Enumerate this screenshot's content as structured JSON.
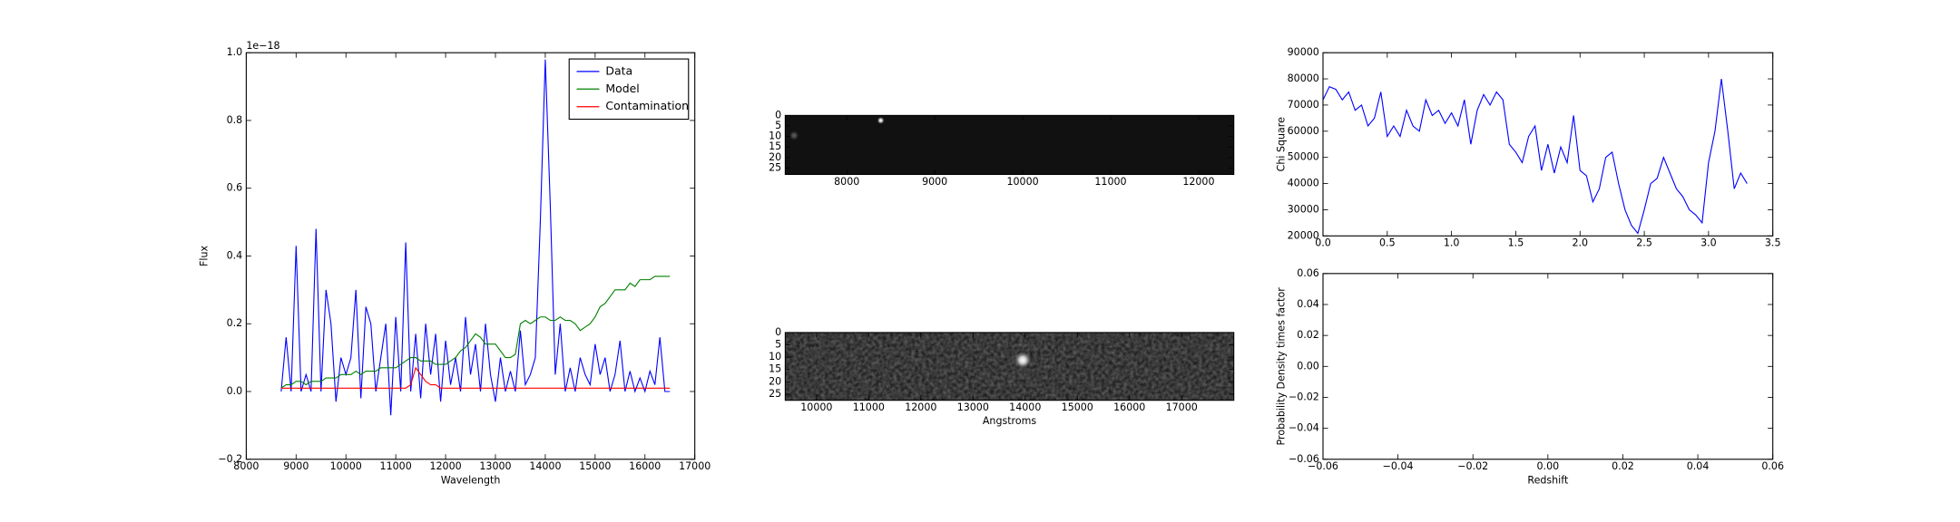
{
  "chart_data": [
    {
      "type": "line",
      "xlabel": "Wavelength",
      "ylabel": "Flux",
      "offset_text": "1e−18",
      "legend": "upper right",
      "xlim": [
        8000,
        17000
      ],
      "xticks": [
        8000,
        9000,
        10000,
        11000,
        12000,
        13000,
        14000,
        15000,
        16000,
        17000
      ],
      "ylim": [
        -0.2,
        1.0
      ],
      "yticks": [
        {
          "value": -0.2,
          "label": "−0.2"
        },
        {
          "value": 0.0,
          "label": "0.0"
        },
        0.2,
        0.4,
        0.6,
        0.8,
        {
          "value": 1.0,
          "label": "1.0"
        }
      ],
      "x": [
        8700,
        8800,
        8900,
        9000,
        9100,
        9200,
        9300,
        9400,
        9500,
        9600,
        9700,
        9800,
        9900,
        10000,
        10100,
        10200,
        10300,
        10400,
        10500,
        10600,
        10700,
        10800,
        10900,
        11000,
        11100,
        11200,
        11300,
        11400,
        11500,
        11600,
        11700,
        11800,
        11900,
        12000,
        12100,
        12200,
        12300,
        12400,
        12500,
        12600,
        12700,
        12800,
        12900,
        13000,
        13100,
        13200,
        13300,
        13400,
        13500,
        13600,
        13700,
        13800,
        13900,
        14000,
        14100,
        14200,
        14300,
        14400,
        14500,
        14600,
        14700,
        14800,
        14900,
        15000,
        15100,
        15200,
        15300,
        15400,
        15500,
        15600,
        15700,
        15800,
        15900,
        16000,
        16100,
        16200,
        16300,
        16400,
        16500
      ],
      "series": [
        {
          "name": "Data",
          "color": "#0000ff",
          "values": [
            0.0,
            0.16,
            0.0,
            0.43,
            0.0,
            0.05,
            0.0,
            0.48,
            0.0,
            0.3,
            0.2,
            -0.03,
            0.1,
            0.05,
            0.1,
            0.3,
            -0.02,
            0.25,
            0.2,
            0.0,
            0.1,
            0.2,
            -0.07,
            0.22,
            0.0,
            0.44,
            0.0,
            0.17,
            -0.02,
            0.2,
            0.05,
            0.17,
            -0.03,
            0.15,
            0.02,
            0.1,
            0.0,
            0.22,
            0.05,
            0.14,
            0.0,
            0.2,
            0.05,
            -0.03,
            0.1,
            0.0,
            0.06,
            0.0,
            0.18,
            0.02,
            0.05,
            0.1,
            0.5,
            0.98,
            0.55,
            0.05,
            0.2,
            0.0,
            0.07,
            0.0,
            0.1,
            0.05,
            0.02,
            0.14,
            0.05,
            0.1,
            0.0,
            0.05,
            0.15,
            0.0,
            0.06,
            0.0,
            0.04,
            0.0,
            0.06,
            0.02,
            0.16,
            0.0,
            0.0
          ]
        },
        {
          "name": "Model",
          "color": "#008000",
          "values": [
            0.01,
            0.02,
            0.02,
            0.03,
            0.03,
            0.02,
            0.03,
            0.03,
            0.03,
            0.04,
            0.04,
            0.04,
            0.05,
            0.05,
            0.05,
            0.06,
            0.05,
            0.06,
            0.06,
            0.06,
            0.07,
            0.07,
            0.07,
            0.07,
            0.08,
            0.09,
            0.1,
            0.1,
            0.09,
            0.09,
            0.09,
            0.08,
            0.08,
            0.08,
            0.09,
            0.1,
            0.12,
            0.13,
            0.15,
            0.17,
            0.16,
            0.14,
            0.14,
            0.14,
            0.12,
            0.1,
            0.1,
            0.11,
            0.2,
            0.21,
            0.2,
            0.21,
            0.22,
            0.22,
            0.21,
            0.21,
            0.22,
            0.21,
            0.21,
            0.2,
            0.18,
            0.19,
            0.2,
            0.22,
            0.25,
            0.26,
            0.28,
            0.3,
            0.3,
            0.3,
            0.32,
            0.31,
            0.33,
            0.33,
            0.33,
            0.34,
            0.34,
            0.34,
            0.34
          ]
        },
        {
          "name": "Contamination",
          "color": "#ff0000",
          "values": [
            0.01,
            0.01,
            0.01,
            0.01,
            0.01,
            0.01,
            0.01,
            0.01,
            0.01,
            0.01,
            0.01,
            0.01,
            0.01,
            0.01,
            0.01,
            0.01,
            0.01,
            0.01,
            0.01,
            0.01,
            0.01,
            0.01,
            0.01,
            0.01,
            0.01,
            0.01,
            0.02,
            0.07,
            0.05,
            0.03,
            0.02,
            0.02,
            0.01,
            0.01,
            0.01,
            0.01,
            0.01,
            0.01,
            0.01,
            0.01,
            0.01,
            0.01,
            0.01,
            0.01,
            0.01,
            0.01,
            0.01,
            0.01,
            0.01,
            0.01,
            0.01,
            0.01,
            0.01,
            0.01,
            0.01,
            0.01,
            0.01,
            0.01,
            0.01,
            0.01,
            0.01,
            0.01,
            0.01,
            0.01,
            0.01,
            0.01,
            0.01,
            0.01,
            0.01,
            0.01,
            0.01,
            0.01,
            0.01,
            0.01,
            0.01,
            0.01,
            0.01,
            0.01,
            0.01
          ]
        }
      ]
    },
    {
      "type": "image",
      "xlim": [
        7300,
        12400
      ],
      "xticks": [
        8000,
        9000,
        10000,
        11000,
        12000
      ],
      "ylim": [
        28,
        0
      ],
      "yticks": [
        0,
        5,
        10,
        15,
        20,
        25
      ]
    },
    {
      "type": "image",
      "xlabel": "Angstroms",
      "xlim": [
        9400,
        18000
      ],
      "xticks": [
        10000,
        11000,
        12000,
        13000,
        14000,
        15000,
        16000,
        17000
      ],
      "ylim": [
        27.5,
        0
      ],
      "yticks": [
        0,
        5,
        10,
        15,
        20,
        25
      ]
    },
    {
      "type": "line",
      "ylabel": "Chi Square",
      "xlim": [
        0,
        3.5
      ],
      "xticks": [
        {
          "value": 0.0,
          "label": "0.0"
        },
        0.5,
        {
          "value": 1.0,
          "label": "1.0"
        },
        1.5,
        {
          "value": 2.0,
          "label": "2.0"
        },
        2.5,
        {
          "value": 3.0,
          "label": "3.0"
        },
        3.5
      ],
      "ylim": [
        20000,
        90000
      ],
      "yticks": [
        20000,
        30000,
        40000,
        50000,
        60000,
        70000,
        80000,
        90000
      ],
      "x": [
        0,
        0.05,
        0.1,
        0.15,
        0.2,
        0.25,
        0.3,
        0.35,
        0.4,
        0.45,
        0.5,
        0.55,
        0.6,
        0.65,
        0.7,
        0.75,
        0.8,
        0.85,
        0.9,
        0.95,
        1.0,
        1.05,
        1.1,
        1.15,
        1.2,
        1.25,
        1.3,
        1.35,
        1.4,
        1.45,
        1.5,
        1.55,
        1.6,
        1.65,
        1.7,
        1.75,
        1.8,
        1.85,
        1.9,
        1.95,
        2.0,
        2.05,
        2.1,
        2.15,
        2.2,
        2.25,
        2.3,
        2.35,
        2.4,
        2.45,
        2.5,
        2.55,
        2.6,
        2.65,
        2.7,
        2.75,
        2.8,
        2.85,
        2.9,
        2.95,
        3.0,
        3.05,
        3.1,
        3.15,
        3.2,
        3.25,
        3.3
      ],
      "series": [
        {
          "color": "#0000ff",
          "values": [
            72000,
            77000,
            76000,
            72000,
            75000,
            68000,
            70000,
            62000,
            65000,
            75000,
            58000,
            62000,
            58000,
            68000,
            62000,
            60000,
            72000,
            66000,
            68000,
            63000,
            67000,
            62000,
            72000,
            55000,
            68000,
            74000,
            70000,
            75000,
            72000,
            55000,
            52000,
            48000,
            58000,
            62000,
            45000,
            55000,
            44000,
            54000,
            48000,
            66000,
            45000,
            43000,
            33000,
            38000,
            50000,
            52000,
            40000,
            30000,
            24000,
            21000,
            30000,
            40000,
            42000,
            50000,
            44000,
            38000,
            35000,
            30000,
            28000,
            25000,
            48000,
            60000,
            80000,
            60000,
            38000,
            44000,
            40000
          ]
        }
      ]
    },
    {
      "type": "line",
      "xlabel": "Redshift",
      "ylabel": "Probability Density times factor",
      "xlim": [
        -0.06,
        0.06
      ],
      "xticks": [
        {
          "value": -0.06,
          "label": "−0.06"
        },
        {
          "value": -0.04,
          "label": "−0.04"
        },
        {
          "value": -0.02,
          "label": "−0.02"
        },
        {
          "value": 0.0,
          "label": "0.00"
        },
        0.02,
        0.04,
        0.06
      ],
      "ylim": [
        -0.06,
        0.06
      ],
      "yticks": [
        {
          "value": -0.06,
          "label": "−0.06"
        },
        {
          "value": -0.04,
          "label": "−0.04"
        },
        {
          "value": -0.02,
          "label": "−0.02"
        },
        {
          "value": 0.0,
          "label": "0.00"
        },
        0.02,
        0.04,
        0.06
      ],
      "x": [],
      "series": []
    }
  ]
}
